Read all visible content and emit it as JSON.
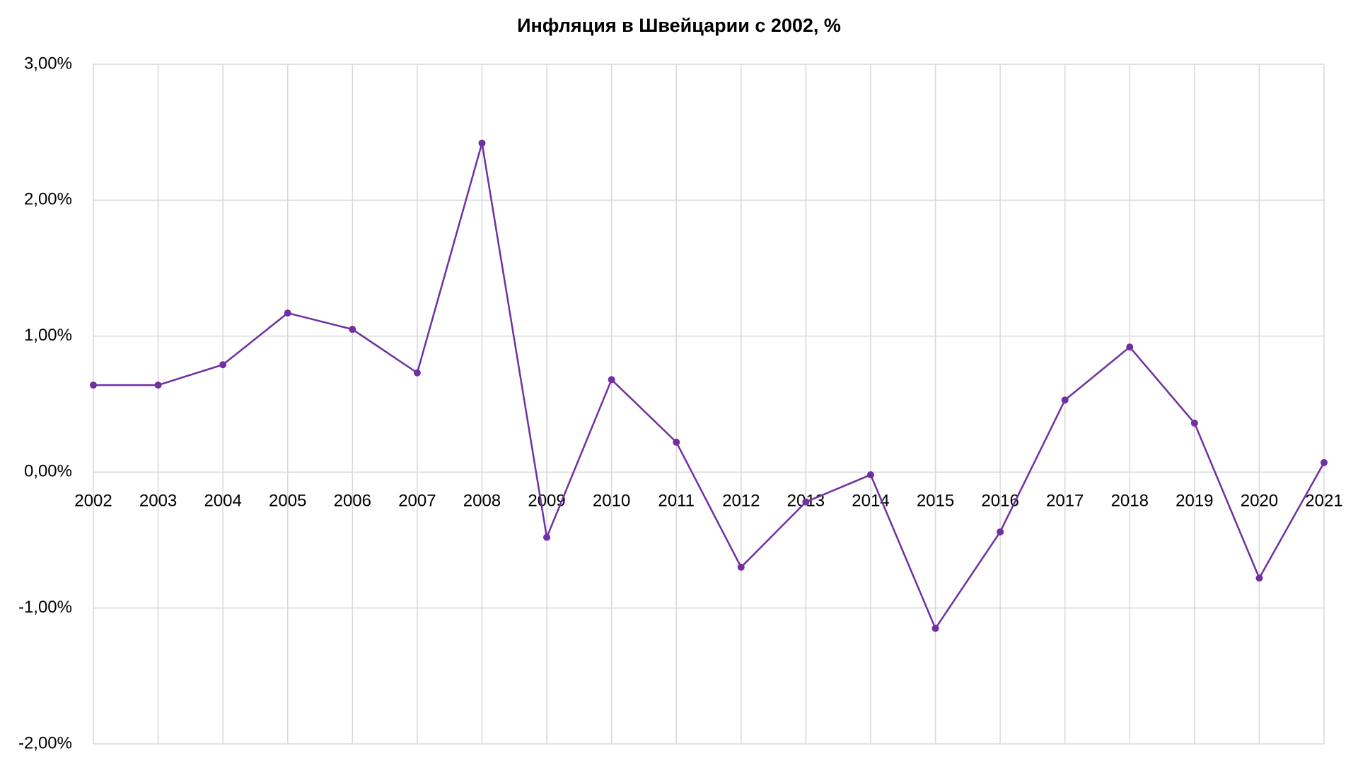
{
  "chart_data": {
    "type": "line",
    "title": "Инфляция в Швейцарии с 2002, %",
    "categories": [
      "2002",
      "2003",
      "2004",
      "2005",
      "2006",
      "2007",
      "2008",
      "2009",
      "2010",
      "2011",
      "2012",
      "2013",
      "2014",
      "2015",
      "2016",
      "2017",
      "2018",
      "2019",
      "2020",
      "2021"
    ],
    "series": [
      {
        "name": "Инфляция",
        "color": "#7030a0",
        "values": [
          0.64,
          0.64,
          0.79,
          1.17,
          1.05,
          0.73,
          2.42,
          -0.48,
          0.68,
          0.22,
          -0.7,
          -0.22,
          -0.02,
          -1.15,
          -0.44,
          0.53,
          0.92,
          0.36,
          -0.78,
          0.07
        ]
      }
    ],
    "ylim": [
      -2,
      3
    ],
    "yticks": [
      {
        "value": -2,
        "label": "-2,00%"
      },
      {
        "value": -1,
        "label": "-1,00%"
      },
      {
        "value": 0,
        "label": "0,00%"
      },
      {
        "value": 1,
        "label": "1,00%"
      },
      {
        "value": 2,
        "label": "2,00%"
      },
      {
        "value": 3,
        "label": "3,00%"
      }
    ],
    "grid": true
  }
}
